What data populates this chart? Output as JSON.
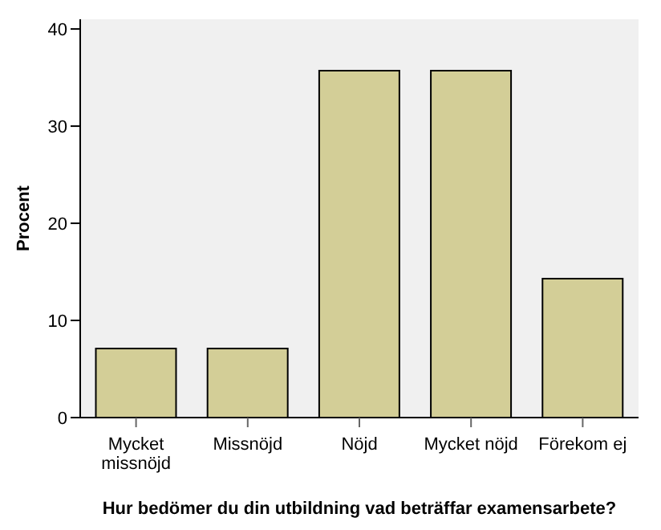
{
  "chart_data": {
    "type": "bar",
    "xlabel": "Hur bedömer du din utbildning vad beträffar examensarbete?",
    "ylabel": "Procent",
    "categories": [
      "Mycket missnöjd",
      "Missnöjd",
      "Nöjd",
      "Mycket nöjd",
      "Förekom ej"
    ],
    "values": [
      7.1,
      7.1,
      35.7,
      35.7,
      14.3
    ],
    "color": "#d3ce97",
    "ylim": [
      0,
      41
    ],
    "yticks": [
      0,
      10,
      20,
      30,
      40
    ],
    "grid": false
  }
}
